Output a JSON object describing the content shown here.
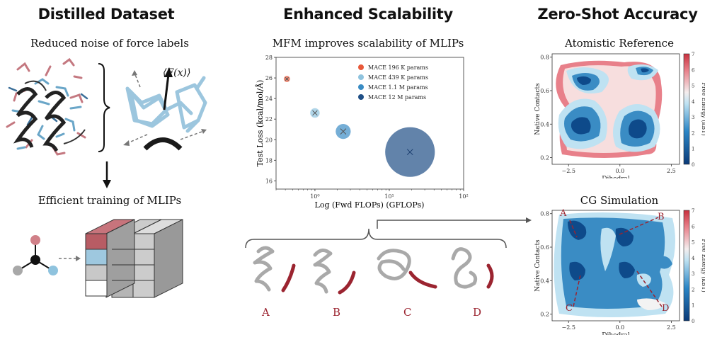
{
  "headings": {
    "distilled": "Distilled Dataset",
    "scalability": "Enhanced Scalability",
    "zeroshot": "Zero-Shot Accuracy"
  },
  "left": {
    "noise_title": "Reduced noise of force labels",
    "force_label": "⟨F(x)⟩",
    "training_title": "Efficient training of MLIPs"
  },
  "middle": {
    "chart_title": "MFM improves scalability of MLIPs",
    "structure_labels": [
      "A",
      "B",
      "C",
      "D"
    ]
  },
  "right": {
    "reference_title": "Atomistic Reference",
    "cg_title": "CG Simulation",
    "xlabel": "Dihedral",
    "ylabel": "Native Contacts",
    "colorbar_label": "Free Energy (kBT)",
    "xticks": [
      "−2.5",
      "0.0",
      "2.5"
    ],
    "yticks": [
      "0.2",
      "0.4",
      "0.6",
      "0.8"
    ],
    "colorbar_ticks": [
      "0",
      "1",
      "2",
      "3",
      "4",
      "5",
      "6",
      "7"
    ],
    "cg_markers": [
      "A",
      "B",
      "C",
      "D"
    ]
  },
  "colors": {
    "accent_red": "#9b2430",
    "light_blue": "#8fc3de",
    "mid_blue": "#3a8cc4",
    "dark_blue": "#1f4f86",
    "orange": "#e8593a"
  },
  "chart_data": {
    "type": "scatter",
    "title": "MFM improves scalability of MLIPs",
    "xlabel": "Log (Fwd FLOPs) (GFLOPs)",
    "ylabel": "Test Loss (kcal/mol/Å)",
    "xscale": "log",
    "xlim": [
      0.3,
      100
    ],
    "ylim": [
      15.2,
      28
    ],
    "xticks": [
      "10⁰",
      "10¹",
      "10²"
    ],
    "yticks": [
      "16",
      "18",
      "20",
      "22",
      "24",
      "26",
      "28"
    ],
    "legend_position": "top-right",
    "series": [
      {
        "name": "MACE 196 K params",
        "x": 0.42,
        "y": 25.9,
        "color": "#e8593a",
        "params_k": 196
      },
      {
        "name": "MACE 439 K params",
        "x": 1.0,
        "y": 22.6,
        "color": "#8fc3de",
        "params_k": 439
      },
      {
        "name": "MACE 1.1 M params",
        "x": 2.4,
        "y": 20.8,
        "color": "#3a8cc4",
        "params_k": 1100
      },
      {
        "name": "MACE 12 M params",
        "x": 19,
        "y": 18.8,
        "color": "#1f4f86",
        "params_k": 12000
      }
    ]
  }
}
